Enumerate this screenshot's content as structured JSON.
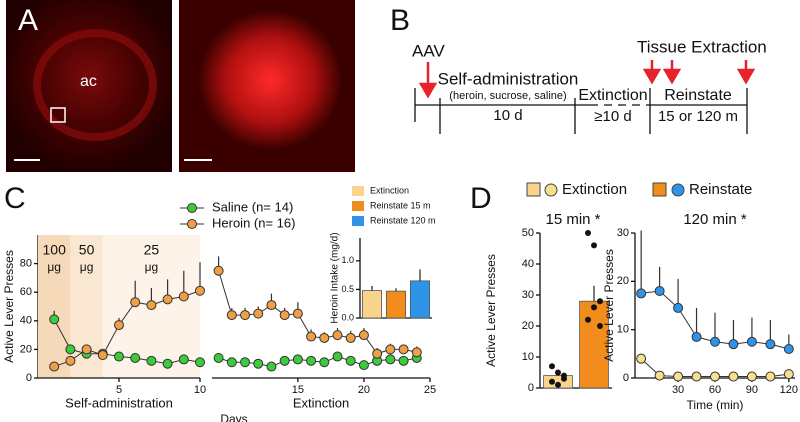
{
  "panel_labels": [
    "A",
    "B",
    "C",
    "D"
  ],
  "image_label": "ac",
  "timeline": {
    "aav": "AAV",
    "tissue": "Tissue Extraction",
    "phase1": "Self-administration",
    "phase1_note": "(heroin, sucrose, saline)",
    "phase1_duration": "10 d",
    "phase2": "Extinction",
    "phase2_duration": "≥10 d",
    "phase3": "Reinstate",
    "phase3_duration": "15 or 120 m"
  },
  "d_legend": [
    "Extinction",
    "Reinstate"
  ],
  "chart_data": [
    {
      "type": "line",
      "y_label": "Active Lever Presses",
      "x_label": "Days",
      "ylim": [
        0,
        100
      ],
      "yticks": [
        0,
        20,
        40,
        60,
        80
      ],
      "bands": [
        {
          "label": "100",
          "unit": "μg",
          "xlim": [
            0,
            2
          ],
          "color": "#f6d9b9"
        },
        {
          "label": "50",
          "unit": "μg",
          "xlim": [
            2,
            4
          ],
          "color": "#fae7d2"
        },
        {
          "label": "25",
          "unit": "μg",
          "xlim": [
            4,
            10
          ],
          "color": "#fdf3e8"
        }
      ],
      "segments": [
        {
          "label": "Self-administration",
          "xlim": [
            0,
            10
          ],
          "xticks": [
            5,
            10
          ],
          "x": [
            1,
            2,
            3,
            4,
            5,
            6,
            7,
            8,
            9,
            10
          ]
        },
        {
          "label": "Extinction",
          "xlim": [
            8.5,
            25
          ],
          "xticks": [
            15,
            20,
            25
          ],
          "x": [
            9,
            10,
            11,
            12,
            13,
            14,
            15,
            16,
            17,
            18,
            19,
            20,
            21,
            22,
            23,
            24
          ]
        }
      ],
      "series": [
        {
          "name": "Saline (n= 14)",
          "color": "#3ccb3c",
          "values": [
            [
              41,
              20,
              17,
              17,
              15,
              14,
              12,
              10,
              13,
              11
            ],
            [
              14,
              11,
              11,
              10,
              8,
              12,
              13,
              12,
              11,
              15,
              12,
              9,
              12,
              13,
              12,
              14
            ]
          ],
          "errors": [
            [
              6,
              3,
              2,
              2,
              2,
              2,
              2,
              2,
              3,
              2
            ],
            [
              3,
              2,
              2,
              2,
              2,
              2,
              2,
              2,
              2,
              3,
              2,
              2,
              2,
              2,
              2,
              3
            ]
          ]
        },
        {
          "name": "Heroin (n= 16)",
          "color": "#f0a044",
          "values": [
            [
              8,
              12,
              20,
              16,
              37,
              53,
              51,
              55,
              57,
              61
            ],
            [
              75,
              44,
              44,
              45,
              51,
              44,
              45,
              29,
              28,
              30,
              28,
              30,
              17,
              20,
              20,
              18
            ]
          ],
          "errors": [
            [
              1,
              3,
              2,
              3,
              5,
              15,
              12,
              14,
              18,
              20
            ],
            [
              10,
              5,
              5,
              5,
              8,
              5,
              8,
              5,
              4,
              5,
              5,
              5,
              4,
              4,
              3,
              4
            ]
          ]
        }
      ]
    },
    {
      "type": "bar",
      "y_label": "Heroin Intake (mg/d)",
      "ylim": [
        0,
        1.4
      ],
      "yticks": [
        {
          "value": 0,
          "label": "0.0"
        },
        {
          "value": 0.5,
          "label": "0.5"
        },
        {
          "value": 1,
          "label": "1.0"
        }
      ],
      "series": [
        {
          "name": "Extinction",
          "color": "#f9d48a",
          "values": [
            0.48
          ],
          "errors": [
            0.08
          ]
        },
        {
          "name": "Reinstate 15 m",
          "color": "#f28c1c",
          "values": [
            0.47
          ],
          "errors": [
            0.05
          ]
        },
        {
          "name": "Reinstate 120 m",
          "color": "#2f94e8",
          "values": [
            0.65
          ],
          "errors": [
            0.2
          ]
        }
      ]
    },
    {
      "type": "bar",
      "title": "15 min *",
      "y_label": "Active Lever Presses",
      "ylim": [
        0,
        50
      ],
      "yticks": [
        0,
        10,
        20,
        30,
        40,
        50
      ],
      "series": [
        {
          "color": "#f9d48a",
          "values": [
            4
          ],
          "errors": [
            1.5
          ],
          "points": [
            7,
            5,
            3,
            2,
            1,
            4
          ]
        },
        {
          "color": "#f28c1c",
          "values": [
            28
          ],
          "errors": [
            5
          ],
          "points": [
            50,
            46,
            28,
            22,
            26,
            20
          ]
        }
      ]
    },
    {
      "type": "line",
      "title": "120 min *",
      "y_label": "Active Lever Presses",
      "x_label": "Time (min)",
      "ylim": [
        0,
        30
      ],
      "yticks": [
        0,
        10,
        20,
        30
      ],
      "segments": [
        {
          "xlim": [
            -5,
            125
          ],
          "xticks": [
            30,
            60,
            90,
            120
          ],
          "x": [
            0,
            15,
            30,
            45,
            60,
            75,
            90,
            105,
            120
          ]
        }
      ],
      "series": [
        {
          "color": "#f7e08c",
          "values": [
            [
              4,
              0.5,
              0.3,
              0.3,
              0.3,
              0.3,
              0.3,
              0.3,
              0.8
            ]
          ],
          "errors": [
            [
              1,
              0.3,
              0.2,
              0.2,
              0.2,
              0.2,
              0.2,
              0.2,
              0.3
            ]
          ]
        },
        {
          "color": "#2f94e8",
          "values": [
            [
              17.5,
              18,
              14.5,
              8.5,
              7.5,
              7,
              7.5,
              7,
              6
            ]
          ],
          "errors": [
            [
              13,
              5,
              6,
              6,
              6,
              5,
              5,
              5,
              3
            ]
          ]
        }
      ]
    }
  ]
}
